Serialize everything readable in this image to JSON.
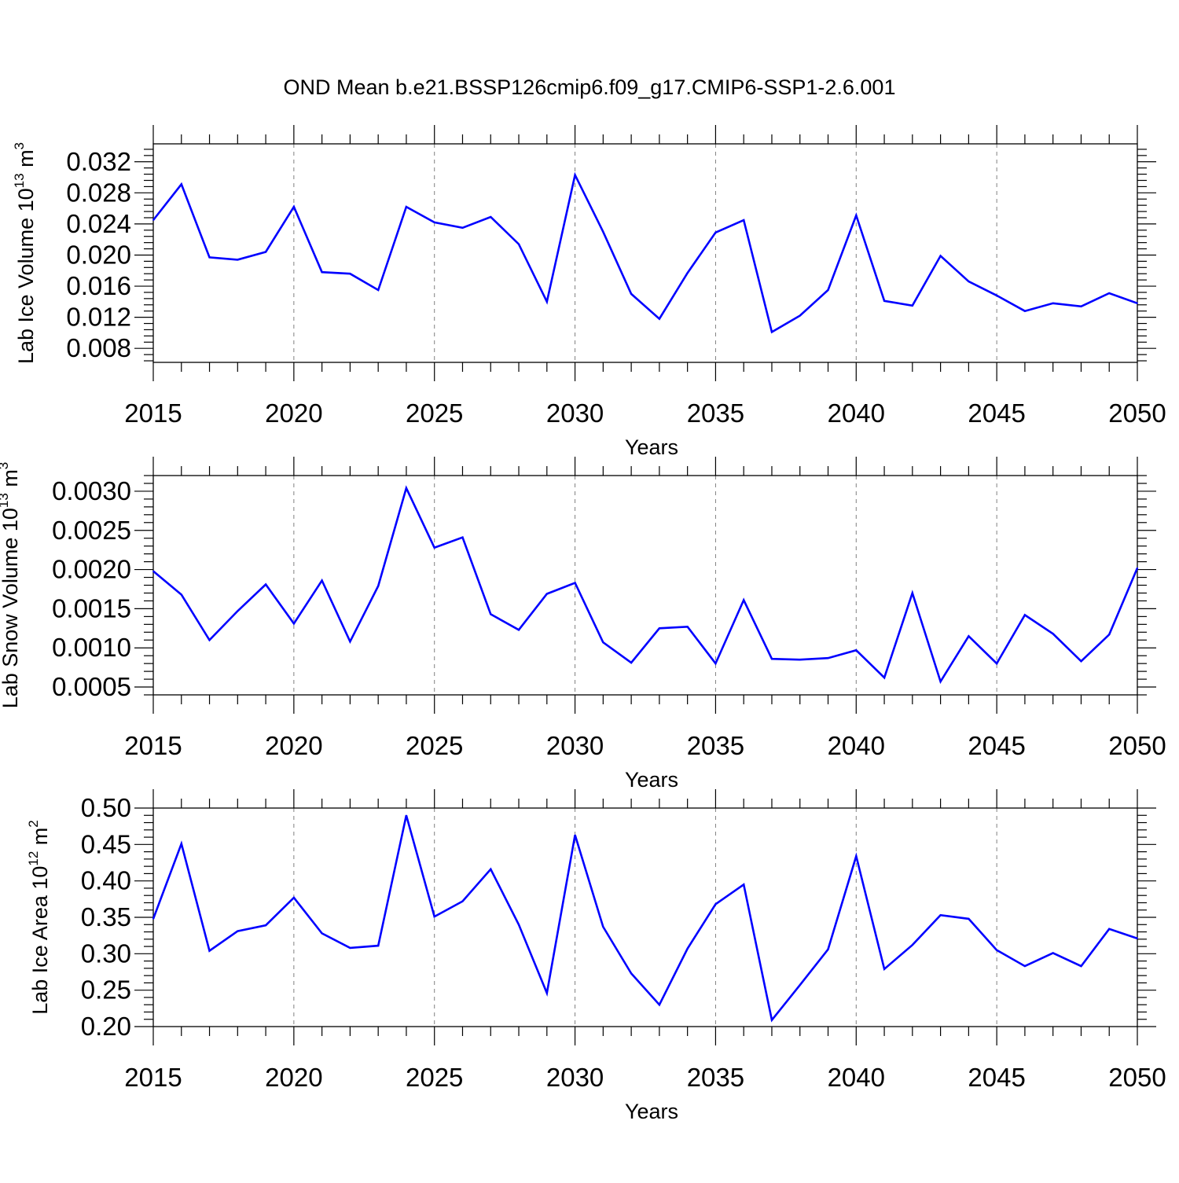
{
  "title": "OND Mean b.e21.BSSP126cmip6.f09_g17.CMIP6-SSP1-2.6.001",
  "colors": {
    "line": "#0000ff",
    "axis": "#000000",
    "grid": "#808080"
  },
  "chart_data": [
    {
      "type": "line",
      "xlabel": "Years",
      "ylabel": {
        "text": "Lab Ice Volume 10",
        "exponent": "13",
        "unit": " m",
        "unit_exponent": "3"
      },
      "xlim": [
        2015,
        2050
      ],
      "ylim": [
        0.0062,
        0.0343
      ],
      "xticks": [
        "2015",
        "2020",
        "2025",
        "2030",
        "2035",
        "2040",
        "2045",
        "2050"
      ],
      "yticks": [
        "0.008",
        "0.012",
        "0.016",
        "0.020",
        "0.024",
        "0.028",
        "0.032"
      ],
      "grid": "vertical dashed at major x ticks",
      "series": [
        {
          "x": [
            2015,
            2016,
            2017,
            2018,
            2019,
            2020,
            2021,
            2022,
            2023,
            2024,
            2025,
            2026,
            2027,
            2028,
            2029,
            2030,
            2031,
            2032,
            2033,
            2034,
            2035,
            2036,
            2037,
            2038,
            2039,
            2040,
            2041,
            2042,
            2043,
            2044,
            2045,
            2046,
            2047,
            2048,
            2049,
            2050
          ],
          "values": [
            0.0245,
            0.0291,
            0.0197,
            0.0194,
            0.0204,
            0.0262,
            0.0178,
            0.0176,
            0.0155,
            0.0262,
            0.0242,
            0.0235,
            0.0249,
            0.0214,
            0.014,
            0.0303,
            0.023,
            0.015,
            0.0118,
            0.0177,
            0.0229,
            0.0245,
            0.0101,
            0.0122,
            0.0155,
            0.0251,
            0.0141,
            0.0135,
            0.0199,
            0.0166,
            0.0148,
            0.0128,
            0.0138,
            0.0134,
            0.0151,
            0.0138
          ]
        }
      ]
    },
    {
      "type": "line",
      "xlabel": "Years",
      "ylabel": {
        "text": "Lab Snow Volume 10",
        "exponent": "13",
        "unit": " m",
        "unit_exponent": "3"
      },
      "xlim": [
        2015,
        2050
      ],
      "ylim": [
        0.0004,
        0.0032
      ],
      "xticks": [
        "2015",
        "2020",
        "2025",
        "2030",
        "2035",
        "2040",
        "2045",
        "2050"
      ],
      "yticks": [
        "0.0005",
        "0.0010",
        "0.0015",
        "0.0020",
        "0.0025",
        "0.0030"
      ],
      "grid": "vertical dashed at major x ticks",
      "series": [
        {
          "x": [
            2015,
            2016,
            2017,
            2018,
            2019,
            2020,
            2021,
            2022,
            2023,
            2024,
            2025,
            2026,
            2027,
            2028,
            2029,
            2030,
            2031,
            2032,
            2033,
            2034,
            2035,
            2036,
            2037,
            2038,
            2039,
            2040,
            2041,
            2042,
            2043,
            2044,
            2045,
            2046,
            2047,
            2048,
            2049,
            2050
          ],
          "values": [
            0.00198,
            0.00168,
            0.0011,
            0.00147,
            0.00181,
            0.00131,
            0.00186,
            0.00108,
            0.00179,
            0.00304,
            0.00228,
            0.00241,
            0.00143,
            0.00123,
            0.00169,
            0.00183,
            0.00107,
            0.00081,
            0.00125,
            0.00127,
            0.0008,
            0.00161,
            0.00086,
            0.00085,
            0.00087,
            0.00097,
            0.00062,
            0.0017,
            0.00057,
            0.00115,
            0.0008,
            0.00142,
            0.00118,
            0.00083,
            0.00117,
            0.00202
          ]
        }
      ]
    },
    {
      "type": "line",
      "xlabel": "Years",
      "ylabel": {
        "text": "Lab Ice Area 10",
        "exponent": "12",
        "unit": " m",
        "unit_exponent": "2"
      },
      "xlim": [
        2015,
        2050
      ],
      "ylim": [
        0.2,
        0.5
      ],
      "xticks": [
        "2015",
        "2020",
        "2025",
        "2030",
        "2035",
        "2040",
        "2045",
        "2050"
      ],
      "yticks": [
        "0.20",
        "0.25",
        "0.30",
        "0.35",
        "0.40",
        "0.45",
        "0.50"
      ],
      "grid": "vertical dashed at major x ticks",
      "series": [
        {
          "x": [
            2015,
            2016,
            2017,
            2018,
            2019,
            2020,
            2021,
            2022,
            2023,
            2024,
            2025,
            2026,
            2027,
            2028,
            2029,
            2030,
            2031,
            2032,
            2033,
            2034,
            2035,
            2036,
            2037,
            2038,
            2039,
            2040,
            2041,
            2042,
            2043,
            2044,
            2045,
            2046,
            2047,
            2048,
            2049,
            2050
          ],
          "values": [
            0.348,
            0.451,
            0.304,
            0.331,
            0.339,
            0.377,
            0.328,
            0.308,
            0.311,
            0.49,
            0.351,
            0.372,
            0.416,
            0.34,
            0.246,
            0.463,
            0.337,
            0.273,
            0.23,
            0.307,
            0.368,
            0.395,
            0.209,
            0.257,
            0.306,
            0.434,
            0.279,
            0.312,
            0.353,
            0.348,
            0.305,
            0.283,
            0.301,
            0.283,
            0.334,
            0.321
          ]
        }
      ]
    }
  ]
}
